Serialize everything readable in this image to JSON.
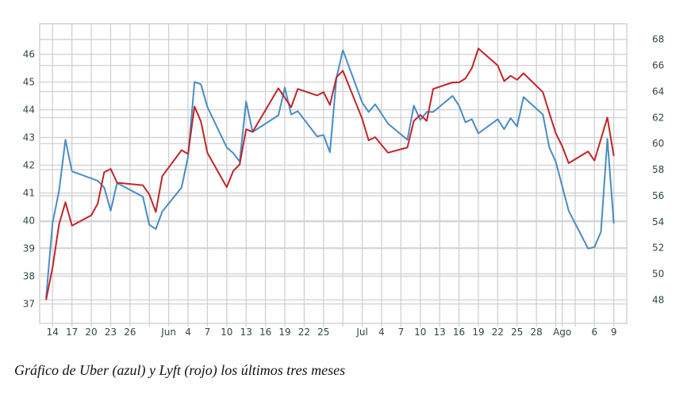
{
  "caption": "Gráfico de Uber (azul) y Lyft (rojo) los últimos tres meses",
  "chart_data": {
    "type": "line",
    "title": "",
    "grid": true,
    "x_range": [
      "05-12",
      "08-11"
    ],
    "x_ticks": [
      {
        "date": "05-14",
        "label": "14"
      },
      {
        "date": "05-17",
        "label": "17"
      },
      {
        "date": "05-20",
        "label": "20"
      },
      {
        "date": "05-23",
        "label": "23"
      },
      {
        "date": "05-26",
        "label": "26"
      },
      {
        "date": "05-29",
        "label": ""
      },
      {
        "date": "06-01",
        "label": "Jun"
      },
      {
        "date": "06-04",
        "label": "4"
      },
      {
        "date": "06-07",
        "label": "7"
      },
      {
        "date": "06-10",
        "label": "10"
      },
      {
        "date": "06-13",
        "label": "13"
      },
      {
        "date": "06-16",
        "label": "16"
      },
      {
        "date": "06-19",
        "label": "19"
      },
      {
        "date": "06-22",
        "label": "22"
      },
      {
        "date": "06-25",
        "label": "25"
      },
      {
        "date": "06-28",
        "label": ""
      },
      {
        "date": "07-01",
        "label": "Jul"
      },
      {
        "date": "07-04",
        "label": "4"
      },
      {
        "date": "07-07",
        "label": "7"
      },
      {
        "date": "07-10",
        "label": "10"
      },
      {
        "date": "07-13",
        "label": "13"
      },
      {
        "date": "07-16",
        "label": "16"
      },
      {
        "date": "07-19",
        "label": "19"
      },
      {
        "date": "07-22",
        "label": "22"
      },
      {
        "date": "07-25",
        "label": "25"
      },
      {
        "date": "07-28",
        "label": "28"
      },
      {
        "date": "07-31",
        "label": ""
      },
      {
        "date": "08-01",
        "label": "Ago"
      },
      {
        "date": "08-03",
        "label": ""
      },
      {
        "date": "08-06",
        "label": "6"
      },
      {
        "date": "08-09",
        "label": "9"
      }
    ],
    "y_left": {
      "range": [
        36.3,
        47.1
      ],
      "ticks": [
        37,
        38,
        39,
        40,
        41,
        42,
        43,
        44,
        45,
        46
      ]
    },
    "y_right": {
      "range": [
        46.2,
        69.2
      ],
      "ticks": [
        48,
        50,
        52,
        54,
        56,
        58,
        60,
        62,
        64,
        66,
        68
      ]
    },
    "series": [
      {
        "color": "#4a8cc4",
        "axis": "left",
        "points": [
          [
            "05-13",
            37.22
          ],
          [
            "05-14",
            39.93
          ],
          [
            "05-15",
            41.07
          ],
          [
            "05-16",
            42.92
          ],
          [
            "05-17",
            41.78
          ],
          [
            "05-21",
            41.44
          ],
          [
            "05-22",
            41.2
          ],
          [
            "05-23",
            40.36
          ],
          [
            "05-24",
            41.36
          ],
          [
            "05-28",
            40.87
          ],
          [
            "05-29",
            39.85
          ],
          [
            "05-30",
            39.7
          ],
          [
            "05-31",
            40.33
          ],
          [
            "06-03",
            41.2
          ],
          [
            "06-04",
            42.3
          ],
          [
            "06-05",
            45.0
          ],
          [
            "06-06",
            44.92
          ],
          [
            "06-07",
            44.1
          ],
          [
            "06-10",
            42.64
          ],
          [
            "06-11",
            42.44
          ],
          [
            "06-12",
            42.13
          ],
          [
            "06-13",
            44.3
          ],
          [
            "06-14",
            43.2
          ],
          [
            "06-18",
            43.8
          ],
          [
            "06-19",
            44.8
          ],
          [
            "06-20",
            43.83
          ],
          [
            "06-21",
            43.95
          ],
          [
            "06-24",
            43.04
          ],
          [
            "06-25",
            43.09
          ],
          [
            "06-26",
            42.47
          ],
          [
            "06-27",
            45.15
          ],
          [
            "06-28",
            46.15
          ],
          [
            "07-01",
            44.26
          ],
          [
            "07-02",
            43.92
          ],
          [
            "07-03",
            44.2
          ],
          [
            "07-05",
            43.5
          ],
          [
            "07-08",
            42.92
          ],
          [
            "07-09",
            44.15
          ],
          [
            "07-10",
            43.63
          ],
          [
            "07-11",
            43.92
          ],
          [
            "07-12",
            43.92
          ],
          [
            "07-15",
            44.5
          ],
          [
            "07-16",
            44.15
          ],
          [
            "07-17",
            43.55
          ],
          [
            "07-18",
            43.66
          ],
          [
            "07-19",
            43.15
          ],
          [
            "07-22",
            43.66
          ],
          [
            "07-23",
            43.3
          ],
          [
            "07-24",
            43.7
          ],
          [
            "07-25",
            43.4
          ],
          [
            "07-26",
            44.46
          ],
          [
            "07-29",
            43.83
          ],
          [
            "07-30",
            42.64
          ],
          [
            "07-31",
            42.13
          ],
          [
            "08-02",
            40.36
          ],
          [
            "08-05",
            39.0
          ],
          [
            "08-06",
            39.05
          ],
          [
            "08-07",
            39.6
          ],
          [
            "08-08",
            42.95
          ],
          [
            "08-09",
            39.9
          ]
        ]
      },
      {
        "color": "#c0252a",
        "axis": "right",
        "points": [
          [
            "05-13",
            48.0
          ],
          [
            "05-14",
            50.5
          ],
          [
            "05-15",
            53.8
          ],
          [
            "05-16",
            55.5
          ],
          [
            "05-17",
            53.7
          ],
          [
            "05-20",
            54.5
          ],
          [
            "05-21",
            55.4
          ],
          [
            "05-22",
            57.8
          ],
          [
            "05-23",
            58.06
          ],
          [
            "05-24",
            57.0
          ],
          [
            "05-28",
            56.8
          ],
          [
            "05-29",
            56.1
          ],
          [
            "05-30",
            54.75
          ],
          [
            "05-31",
            57.5
          ],
          [
            "06-03",
            59.5
          ],
          [
            "06-04",
            59.2
          ],
          [
            "06-05",
            62.85
          ],
          [
            "06-06",
            61.7
          ],
          [
            "06-07",
            59.3
          ],
          [
            "06-10",
            56.65
          ],
          [
            "06-11",
            57.9
          ],
          [
            "06-12",
            58.4
          ],
          [
            "06-13",
            61.1
          ],
          [
            "06-14",
            60.9
          ],
          [
            "06-18",
            64.25
          ],
          [
            "06-20",
            62.8
          ],
          [
            "06-21",
            64.2
          ],
          [
            "06-24",
            63.7
          ],
          [
            "06-25",
            63.95
          ],
          [
            "06-26",
            62.97
          ],
          [
            "06-27",
            65.1
          ],
          [
            "06-28",
            65.6
          ],
          [
            "07-01",
            61.9
          ],
          [
            "07-02",
            60.25
          ],
          [
            "07-03",
            60.5
          ],
          [
            "07-05",
            59.3
          ],
          [
            "07-08",
            59.7
          ],
          [
            "07-09",
            61.74
          ],
          [
            "07-10",
            62.2
          ],
          [
            "07-11",
            61.74
          ],
          [
            "07-12",
            64.2
          ],
          [
            "07-15",
            64.7
          ],
          [
            "07-16",
            64.7
          ],
          [
            "07-17",
            65.0
          ],
          [
            "07-18",
            65.8
          ],
          [
            "07-19",
            67.3
          ],
          [
            "07-22",
            66.0
          ],
          [
            "07-23",
            64.8
          ],
          [
            "07-24",
            65.2
          ],
          [
            "07-25",
            64.9
          ],
          [
            "07-26",
            65.4
          ],
          [
            "07-29",
            63.95
          ],
          [
            "07-30",
            62.35
          ],
          [
            "07-31",
            60.8
          ],
          [
            "08-01",
            59.8
          ],
          [
            "08-02",
            58.5
          ],
          [
            "08-05",
            59.4
          ],
          [
            "08-06",
            58.7
          ],
          [
            "08-08",
            62.0
          ],
          [
            "08-09",
            59.05
          ]
        ]
      }
    ]
  }
}
